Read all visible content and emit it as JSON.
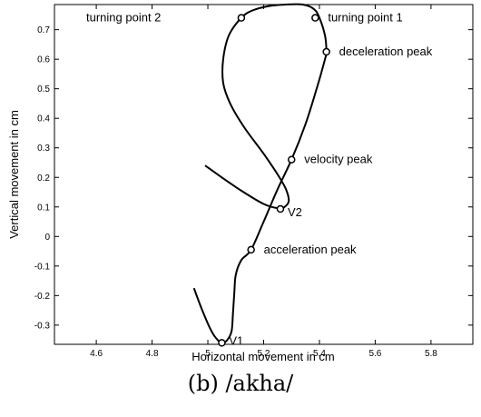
{
  "caption": "(b) /akha/",
  "chart_data": {
    "type": "line",
    "title": "",
    "xlabel": "Horizontal movement in cm",
    "ylabel": "Vertical movement in cm",
    "xlim": [
      4.45,
      5.95
    ],
    "ylim": [
      -0.365,
      0.785
    ],
    "grid": false,
    "x_ticks": [
      4.6,
      4.8,
      5,
      5.2,
      5.4,
      5.6,
      5.8
    ],
    "x_tick_labels": [
      "4.6",
      "4.8",
      "5",
      "5.2",
      "5.4",
      "5.6",
      "5.8"
    ],
    "y_ticks": [
      -0.3,
      -0.2,
      -0.1,
      0,
      0.1,
      0.2,
      0.3,
      0.4,
      0.5,
      0.6,
      0.7
    ],
    "y_tick_labels": [
      "-0.3",
      "-0.2",
      "-0.1",
      "0",
      "0.1",
      "0.2",
      "0.3",
      "0.4",
      "0.5",
      "0.6",
      "0.7"
    ],
    "series": [
      {
        "x": [
          4.95,
          4.98,
          5.01,
          5.03,
          5.05,
          5.07,
          5.085,
          5.09,
          5.095,
          5.1,
          5.12,
          5.155,
          5.2,
          5.25,
          5.3,
          5.35,
          5.39,
          5.42,
          5.425,
          5.42,
          5.4,
          5.38,
          5.34,
          5.28,
          5.22,
          5.16,
          5.12,
          5.075,
          5.055,
          5.055,
          5.08,
          5.13,
          5.2,
          5.25,
          5.28,
          5.29,
          5.275,
          5.255,
          5.2,
          5.12,
          5.05,
          4.99
        ],
        "y": [
          -0.175,
          -0.25,
          -0.315,
          -0.345,
          -0.36,
          -0.35,
          -0.32,
          -0.26,
          -0.19,
          -0.13,
          -0.08,
          -0.045,
          0.05,
          0.16,
          0.26,
          0.38,
          0.5,
          0.6,
          0.625,
          0.68,
          0.74,
          0.77,
          0.785,
          0.785,
          0.78,
          0.765,
          0.74,
          0.68,
          0.6,
          0.52,
          0.45,
          0.37,
          0.28,
          0.21,
          0.16,
          0.12,
          0.1,
          0.095,
          0.11,
          0.155,
          0.2,
          0.24
        ]
      }
    ],
    "markers": [
      {
        "label": "turning point 1",
        "x": 5.385,
        "y": 0.74,
        "label_pos": "right"
      },
      {
        "label": "turning point 2",
        "x": 5.12,
        "y": 0.74,
        "label_pos": "far-left"
      },
      {
        "label": "deceleration peak",
        "x": 5.425,
        "y": 0.625,
        "label_pos": "right"
      },
      {
        "label": "velocity peak",
        "x": 5.3,
        "y": 0.26,
        "label_pos": "right"
      },
      {
        "label": "V2",
        "x": 5.26,
        "y": 0.093,
        "label_pos": "right"
      },
      {
        "label": "acceleration peak",
        "x": 5.155,
        "y": -0.045,
        "label_pos": "right"
      },
      {
        "label": "V1",
        "x": 5.05,
        "y": -0.36,
        "label_pos": "right"
      }
    ]
  }
}
